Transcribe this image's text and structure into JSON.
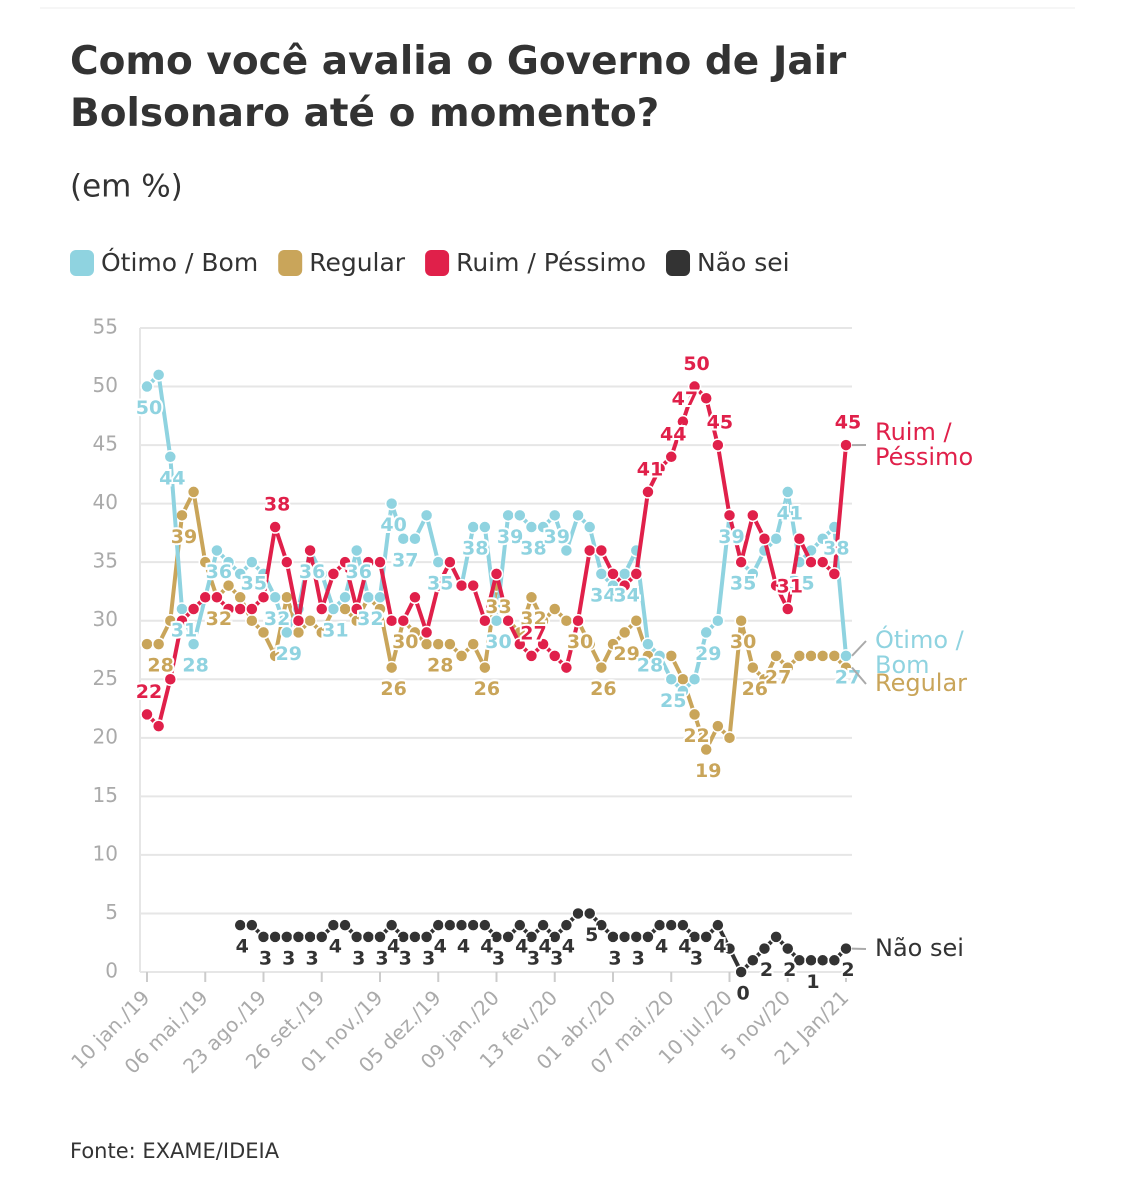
{
  "chart_data": {
    "type": "line",
    "title": "Como você avalia o Governo de Jair Bolsonaro até o momento?",
    "subtitle": "(em %)",
    "source": "Fonte: EXAME/IDEIA",
    "categories": [
      "10 jan./19",
      null,
      null,
      null,
      null,
      "06 mai./19",
      null,
      null,
      null,
      null,
      "23 ago./19",
      null,
      null,
      null,
      null,
      "26 set./19",
      null,
      null,
      null,
      null,
      "01 nov./19",
      null,
      null,
      null,
      null,
      "05 dez./19",
      null,
      null,
      null,
      null,
      "09 jan./20",
      null,
      null,
      null,
      null,
      "13 fev./20",
      null,
      null,
      null,
      null,
      "01 abr./20",
      null,
      null,
      null,
      null,
      "07 mai./20",
      null,
      null,
      null,
      null,
      "10 jul./20",
      null,
      null,
      null,
      null,
      "5 nov/20",
      null,
      null,
      null,
      null,
      "21 Jan/21"
    ],
    "ylim": [
      0,
      55
    ],
    "yticks": [
      0,
      5,
      10,
      15,
      20,
      25,
      30,
      35,
      40,
      45,
      50,
      55
    ],
    "grid": true,
    "legend": "top",
    "series": [
      {
        "name": "Regular",
        "color": "#c9a55a",
        "values": [
          28,
          28,
          30,
          39,
          41,
          35,
          32,
          33,
          32,
          30,
          29,
          27,
          32,
          29,
          30,
          29,
          31,
          31,
          30,
          32,
          31,
          26,
          30,
          29,
          28,
          28,
          28,
          27,
          28,
          26,
          33,
          30,
          29,
          32,
          30,
          31,
          30,
          30,
          28,
          26,
          28,
          29,
          30,
          27,
          27,
          27,
          25,
          22,
          19,
          21,
          20,
          30,
          26,
          25,
          27,
          26,
          27,
          27,
          27,
          27,
          26
        ],
        "value_labels": [
          null,
          "28",
          null,
          "39",
          null,
          null,
          "32",
          null,
          null,
          null,
          null,
          null,
          null,
          null,
          null,
          null,
          null,
          null,
          null,
          null,
          null,
          "26",
          "30",
          null,
          null,
          "28",
          null,
          null,
          null,
          "26",
          "33",
          null,
          null,
          "32",
          null,
          null,
          null,
          "30",
          null,
          "26",
          null,
          "29",
          null,
          null,
          null,
          null,
          null,
          "22",
          "19",
          null,
          null,
          "30",
          "26",
          null,
          "27",
          null,
          null,
          null,
          null,
          null,
          null
        ]
      },
      {
        "name": "Ótimo / Bom",
        "color": "#8fd3e0",
        "values": [
          50,
          51,
          44,
          31,
          28,
          32,
          36,
          35,
          34,
          35,
          34,
          32,
          29,
          31,
          36,
          34,
          31,
          32,
          36,
          32,
          32,
          40,
          37,
          37,
          39,
          35,
          35,
          33,
          38,
          38,
          30,
          39,
          39,
          38,
          38,
          39,
          36,
          39,
          38,
          34,
          33,
          34,
          36,
          28,
          27,
          25,
          24,
          25,
          29,
          30,
          39,
          35,
          34,
          36,
          37,
          41,
          35,
          36,
          37,
          38,
          27
        ],
        "value_labels": [
          "50",
          null,
          "44",
          "31",
          "28",
          null,
          "36",
          null,
          null,
          "35",
          null,
          "32",
          "29",
          null,
          "36",
          null,
          "31",
          null,
          "36",
          "32",
          null,
          "40",
          "37",
          null,
          null,
          "35",
          null,
          null,
          "38",
          null,
          "30",
          "39",
          null,
          "38",
          null,
          "39",
          null,
          null,
          null,
          "34",
          null,
          "34",
          null,
          "28",
          null,
          "25",
          null,
          null,
          "29",
          null,
          "39",
          "35",
          null,
          null,
          null,
          "41",
          "35",
          null,
          null,
          "38",
          "27"
        ]
      },
      {
        "name": "Ruim / Péssimo",
        "color": "#e0204a",
        "values": [
          22,
          21,
          25,
          30,
          31,
          32,
          32,
          31,
          31,
          31,
          32,
          38,
          35,
          30,
          36,
          31,
          34,
          35,
          31,
          35,
          35,
          30,
          30,
          32,
          29,
          33,
          35,
          33,
          33,
          30,
          34,
          30,
          28,
          27,
          28,
          27,
          26,
          30,
          36,
          36,
          34,
          33,
          34,
          41,
          43,
          44,
          47,
          50,
          49,
          45,
          39,
          35,
          39,
          37,
          33,
          31,
          37,
          35,
          35,
          34,
          45
        ],
        "value_labels": [
          "22",
          null,
          null,
          null,
          null,
          null,
          null,
          null,
          null,
          null,
          null,
          "38",
          null,
          null,
          null,
          null,
          null,
          null,
          null,
          null,
          null,
          null,
          null,
          null,
          null,
          null,
          null,
          null,
          null,
          null,
          null,
          null,
          null,
          "27",
          null,
          null,
          null,
          null,
          null,
          null,
          null,
          null,
          null,
          "41",
          null,
          "44",
          "47",
          "50",
          null,
          "45",
          null,
          null,
          null,
          null,
          null,
          "31",
          null,
          null,
          null,
          null,
          "45"
        ]
      },
      {
        "name": "Não sei",
        "color": "#333333",
        "values": [
          null,
          null,
          null,
          null,
          null,
          null,
          null,
          null,
          4,
          4,
          3,
          3,
          3,
          3,
          3,
          3,
          4,
          4,
          3,
          3,
          3,
          4,
          3,
          3,
          3,
          4,
          4,
          4,
          4,
          4,
          3,
          3,
          4,
          3,
          4,
          3,
          4,
          5,
          5,
          4,
          3,
          3,
          3,
          3,
          4,
          4,
          4,
          3,
          3,
          4,
          2,
          0,
          1,
          2,
          3,
          2,
          1,
          1,
          1,
          1,
          2
        ],
        "value_labels": [
          null,
          null,
          null,
          null,
          null,
          null,
          null,
          null,
          "4",
          null,
          "3",
          null,
          "3",
          null,
          "3",
          null,
          "4",
          null,
          "3",
          null,
          "3",
          "4",
          "3",
          null,
          "3",
          "4",
          null,
          "4",
          null,
          "4",
          "3",
          null,
          "4",
          "3",
          "4",
          "3",
          "4",
          null,
          "5",
          null,
          "3",
          null,
          "3",
          null,
          "4",
          null,
          "4",
          "3",
          null,
          "4",
          null,
          "0",
          null,
          "2",
          null,
          "2",
          null,
          "1",
          null,
          null,
          "2"
        ]
      }
    ]
  }
}
